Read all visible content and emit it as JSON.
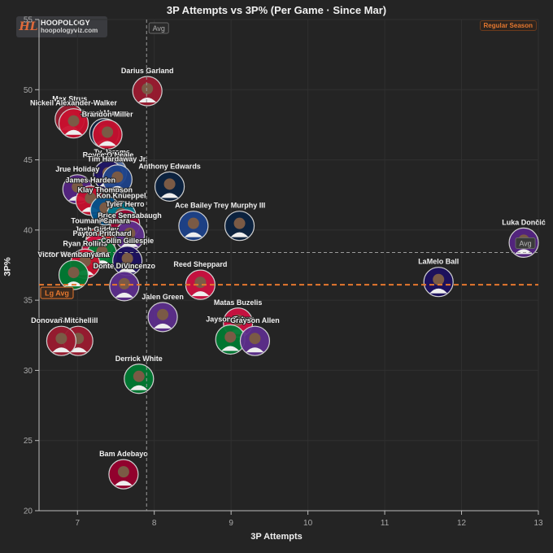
{
  "brand": {
    "name": "HOOPOLOGY",
    "url": "hoopologyviz.com",
    "logo_glyph": "HL"
  },
  "badge": {
    "season": "Regular Season"
  },
  "chart_data": {
    "type": "scatter",
    "title": "3P Attempts vs 3P% (Per Game · Since Mar)",
    "xlabel": "3P Attempts",
    "ylabel": "3P%",
    "xlim": [
      6.5,
      13
    ],
    "ylim": [
      20,
      55
    ],
    "xticks": [
      7,
      8,
      9,
      10,
      11,
      12,
      13
    ],
    "yticks": [
      20,
      25,
      30,
      35,
      40,
      45,
      50,
      55
    ],
    "grid": true,
    "reference_lines": {
      "avg_x": {
        "value": 7.9,
        "label": "Avg"
      },
      "avg_y": {
        "value": 38.4,
        "label": "Avg"
      },
      "league_avg_y": {
        "value": 36.1,
        "label": "Lg Avg"
      }
    },
    "colors": {
      "avg_line": "#9a9a9a",
      "league_avg_line": "#e5772e",
      "accent": "#e5772e"
    },
    "points": [
      {
        "name": "Darius Garland",
        "x": 7.91,
        "y": 49.9,
        "team_color": "#9b1b30"
      },
      {
        "name": "Max Strus",
        "x": 6.9,
        "y": 47.9,
        "team_color": "#9b1b30"
      },
      {
        "name": "Nickeil Alexander-Walker",
        "x": 6.95,
        "y": 47.6,
        "team_color": "#c8102e"
      },
      {
        "name": "Jamal Murray",
        "x": 7.35,
        "y": 46.9,
        "team_color": "#0e2240"
      },
      {
        "name": "Brandon Miller",
        "x": 7.39,
        "y": 46.8,
        "team_color": "#c8102e"
      },
      {
        "name": "Ty Jerome",
        "x": 7.45,
        "y": 44.1,
        "team_color": "#5d76a9"
      },
      {
        "name": "Royce O'Neale",
        "x": 7.4,
        "y": 43.9,
        "team_color": "#1d1160"
      },
      {
        "name": "Tim Hardaway Jr.",
        "x": 7.52,
        "y": 43.6,
        "team_color": "#1d428a"
      },
      {
        "name": "Anthony Edwards",
        "x": 8.2,
        "y": 43.1,
        "team_color": "#0c2340"
      },
      {
        "name": "Jrue Holiday",
        "x": 7.0,
        "y": 42.9,
        "team_color": "#552583"
      },
      {
        "name": "James Harden",
        "x": 7.17,
        "y": 42.1,
        "team_color": "#c8102e"
      },
      {
        "name": "Klay Thompson",
        "x": 7.36,
        "y": 41.4,
        "team_color": "#00538c"
      },
      {
        "name": "Kon Knueppel",
        "x": 7.57,
        "y": 41.0,
        "team_color": "#00788c"
      },
      {
        "name": "Tyler Herro",
        "x": 7.62,
        "y": 40.4,
        "team_color": "#98002e"
      },
      {
        "name": "Ace Bailey",
        "x": 8.51,
        "y": 40.3,
        "team_color": "#1d428a"
      },
      {
        "name": "Trey Murphy III",
        "x": 9.11,
        "y": 40.3,
        "team_color": "#0c2340"
      },
      {
        "name": "Brice Sensabaugh",
        "x": 7.68,
        "y": 39.6,
        "team_color": "#5d2e8c"
      },
      {
        "name": "Toumani Camara",
        "x": 7.3,
        "y": 39.2,
        "team_color": "#e03a3e"
      },
      {
        "name": "Josh Giddey",
        "x": 7.25,
        "y": 38.6,
        "team_color": "#ce1141"
      },
      {
        "name": "Payton Pritchard",
        "x": 7.32,
        "y": 38.3,
        "team_color": "#007a33"
      },
      {
        "name": "Luka Dončić",
        "x": 12.81,
        "y": 39.1,
        "team_color": "#552583"
      },
      {
        "name": "Ryan Rollins",
        "x": 7.1,
        "y": 37.6,
        "team_color": "#c8102e"
      },
      {
        "name": "Collin Gillespie",
        "x": 7.65,
        "y": 37.8,
        "team_color": "#1d1160"
      },
      {
        "name": "Victor Wembanyama",
        "x": 6.95,
        "y": 36.8,
        "team_color": "#007a33"
      },
      {
        "name": "Donte DiVincenzo",
        "x": 7.61,
        "y": 36.0,
        "team_color": "#5d2e8c"
      },
      {
        "name": "LaMelo Ball",
        "x": 11.7,
        "y": 36.3,
        "team_color": "#1d1160"
      },
      {
        "name": "Reed Sheppard",
        "x": 8.6,
        "y": 36.1,
        "team_color": "#ce1141"
      },
      {
        "name": "Jalen Green",
        "x": 8.11,
        "y": 33.8,
        "team_color": "#5d2e8c"
      },
      {
        "name": "Matas Buzelis",
        "x": 9.09,
        "y": 33.4,
        "team_color": "#ce1141"
      },
      {
        "name": "Sam Merrill",
        "x": 7.01,
        "y": 32.1,
        "team_color": "#9b1b30"
      },
      {
        "name": "Donovan Mitchell",
        "x": 6.79,
        "y": 32.1,
        "team_color": "#9b1b30"
      },
      {
        "name": "Jayson Tatum",
        "x": 8.99,
        "y": 32.2,
        "team_color": "#007a33"
      },
      {
        "name": "Grayson Allen",
        "x": 9.31,
        "y": 32.1,
        "team_color": "#5d2e8c"
      },
      {
        "name": "Derrick White",
        "x": 7.8,
        "y": 29.4,
        "team_color": "#007a33"
      },
      {
        "name": "Bam Adebayo",
        "x": 7.6,
        "y": 22.6,
        "team_color": "#98002e"
      }
    ]
  }
}
